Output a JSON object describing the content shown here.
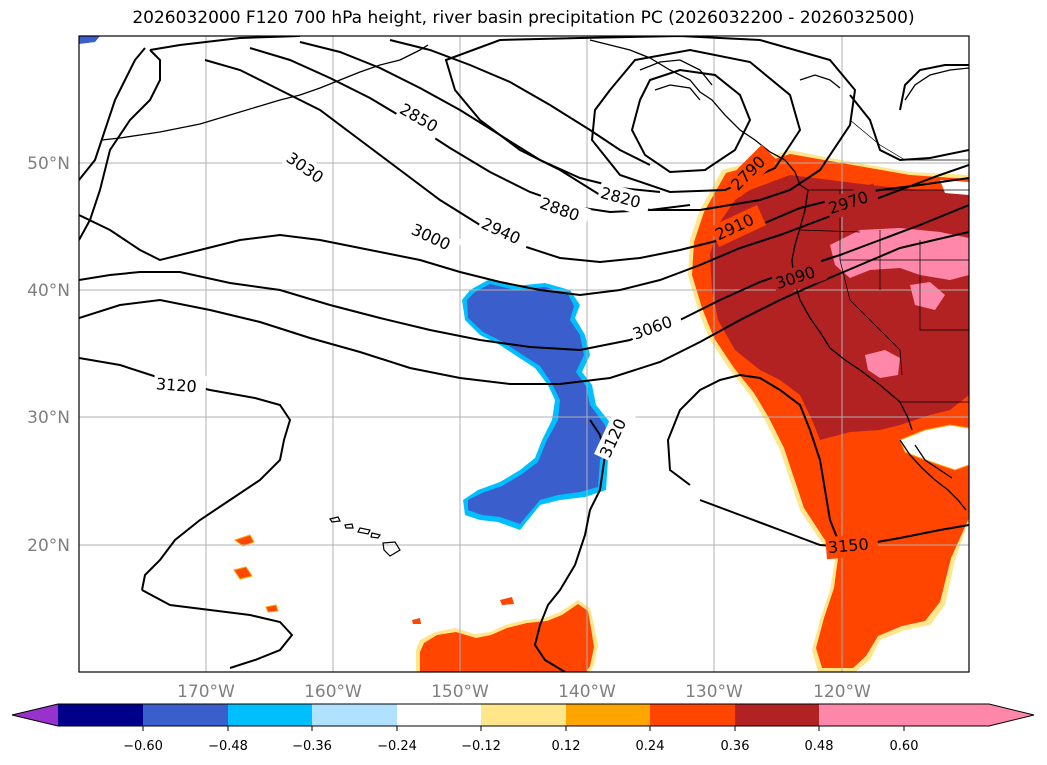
{
  "title": "2026032000 F120 700 hPa height, river basin precipitation PC (2026032200 - 2026032500)",
  "map": {
    "lat_labels": [
      "50°N",
      "40°N",
      "30°N",
      "20°N"
    ],
    "lon_labels": [
      "170°W",
      "160°W",
      "150°W",
      "140°W",
      "130°W",
      "120°W"
    ],
    "contour_labels": [
      "2850",
      "3030",
      "2820",
      "2880",
      "2940",
      "3000",
      "2790",
      "2910",
      "2970",
      "3090",
      "3060",
      "3120",
      "3120",
      "3150"
    ]
  },
  "colorbar": {
    "ticks": [
      "−0.60",
      "−0.48",
      "−0.36",
      "−0.24",
      "−0.12",
      "0.12",
      "0.24",
      "0.36",
      "0.48",
      "0.60"
    ],
    "colors": [
      "#9932CC",
      "#00008B",
      "#3A5FCD",
      "#00BFFF",
      "#B0E2FF",
      "#FFFFFF",
      "#FFE68A",
      "#FFA500",
      "#FF4500",
      "#B22222",
      "#FF88AA"
    ]
  }
}
